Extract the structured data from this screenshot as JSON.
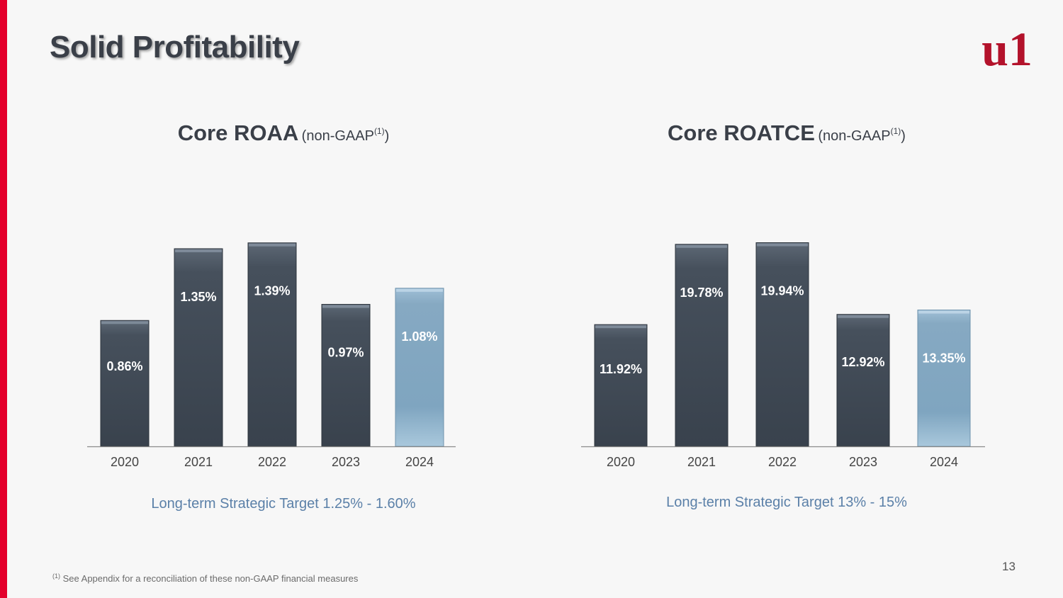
{
  "slide": {
    "title": "Solid Profitability",
    "page_number": "13",
    "logo_text": "u1",
    "footnote": {
      "marker": "(1)",
      "text": "See Appendix for a reconciliation of these non-GAAP financial measures"
    },
    "colors": {
      "accent_bar": "#e4002b",
      "logo": "#b3122b",
      "bar_dark": "#39424d",
      "bar_highlight": "#86a9c2",
      "target_text": "#5b80a8",
      "title_text": "#3a3f48"
    }
  },
  "chart_data": [
    {
      "type": "bar",
      "title": "Core ROAA",
      "title_qualifier": "(non-GAAP",
      "title_footnote": "(1)",
      "title_close": ")",
      "categories": [
        "2020",
        "2021",
        "2022",
        "2023",
        "2024"
      ],
      "values": [
        0.86,
        1.35,
        1.39,
        0.97,
        1.08
      ],
      "value_labels": [
        "0.86%",
        "1.35%",
        "1.39%",
        "0.97%",
        "1.08%"
      ],
      "highlight_index": 4,
      "ylim": [
        0,
        1.5
      ],
      "grid": false,
      "legend": "none",
      "annotation": "Long-term Strategic Target 1.25% - 1.60%"
    },
    {
      "type": "bar",
      "title": "Core ROATCE",
      "title_qualifier": "(non-GAAP",
      "title_footnote": "(1)",
      "title_close": ")",
      "categories": [
        "2020",
        "2021",
        "2022",
        "2023",
        "2024"
      ],
      "values": [
        11.92,
        19.78,
        19.94,
        12.92,
        13.35
      ],
      "value_labels": [
        "11.92%",
        "19.78%",
        "19.94%",
        "12.92%",
        "13.35%"
      ],
      "highlight_index": 4,
      "ylim": [
        0,
        21.5
      ],
      "grid": false,
      "legend": "none",
      "annotation": "Long-term Strategic Target 13% - 15%"
    }
  ]
}
